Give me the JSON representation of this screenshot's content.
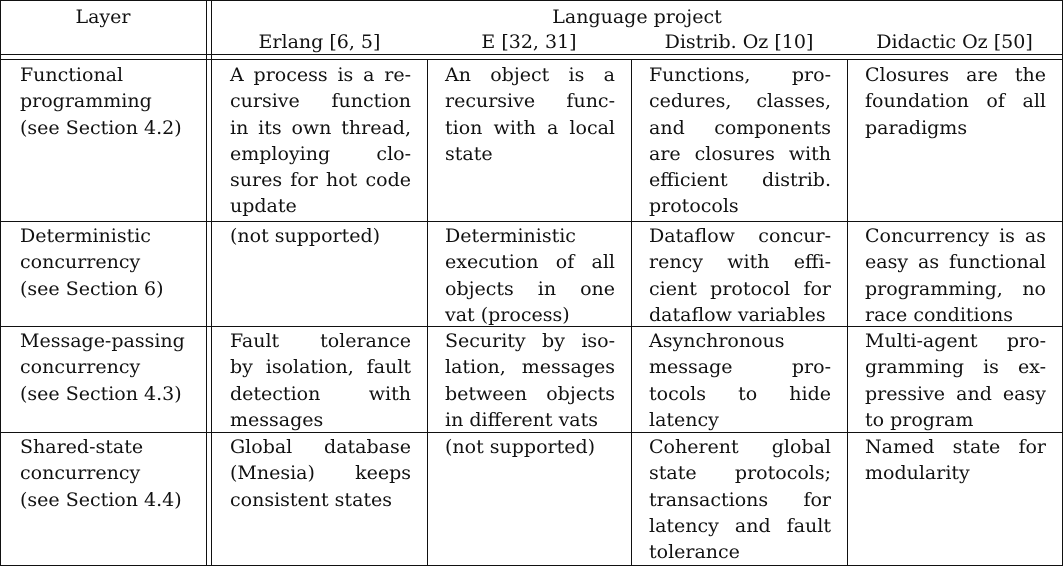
{
  "header": {
    "layer_label": "Layer",
    "project_label": "Language project",
    "columns": [
      "Erlang [6, 5]",
      "E [32, 31]",
      "Distrib. Oz [10]",
      "Didactic Oz [50]"
    ]
  },
  "rows": [
    {
      "layer": [
        "Functional",
        "programming",
        "(see Section 4.2)"
      ],
      "cells": [
        [
          "A process is a re-",
          "cursive function",
          "in its own thread,",
          "employing clo-",
          "sures for hot code",
          "update"
        ],
        [
          "An object is a",
          "recursive func-",
          "tion with a local",
          "state"
        ],
        [
          "Functions, pro-",
          "cedures, classes,",
          "and components",
          "are closures with",
          "efficient distrib.",
          "protocols"
        ],
        [
          "Closures are the",
          "foundation of all",
          "paradigms"
        ]
      ]
    },
    {
      "layer": [
        "Deterministic",
        "concurrency",
        "(see Section 6)"
      ],
      "cells": [
        [
          "(not supported)"
        ],
        [
          "Deterministic",
          "execution of all",
          "objects in one",
          "vat (process)"
        ],
        [
          "Dataflow concur-",
          "rency with effi-",
          "cient protocol for",
          "dataflow variables"
        ],
        [
          "Concurrency is as",
          "easy as functional",
          "programming, no",
          "race conditions"
        ]
      ]
    },
    {
      "layer": [
        "Message-passing",
        "concurrency",
        "(see Section 4.3)"
      ],
      "cells": [
        [
          "Fault tolerance",
          "by isolation, fault",
          "detection with",
          "messages"
        ],
        [
          "Security by iso-",
          "lation, messages",
          "between objects",
          "in different vats"
        ],
        [
          "Asynchronous",
          "message pro-",
          "tocols to hide",
          "latency"
        ],
        [
          "Multi-agent pro-",
          "gramming is ex-",
          "pressive and easy",
          "to program"
        ]
      ]
    },
    {
      "layer": [
        "Shared-state",
        "concurrency",
        "(see Section 4.4)"
      ],
      "cells": [
        [
          "Global database",
          "(Mnesia) keeps",
          "consistent states"
        ],
        [
          "(not supported)"
        ],
        [
          "Coherent global",
          "state protocols;",
          "transactions for",
          "latency and fault",
          "tolerance"
        ],
        [
          "Named state for",
          "modularity"
        ]
      ]
    }
  ]
}
